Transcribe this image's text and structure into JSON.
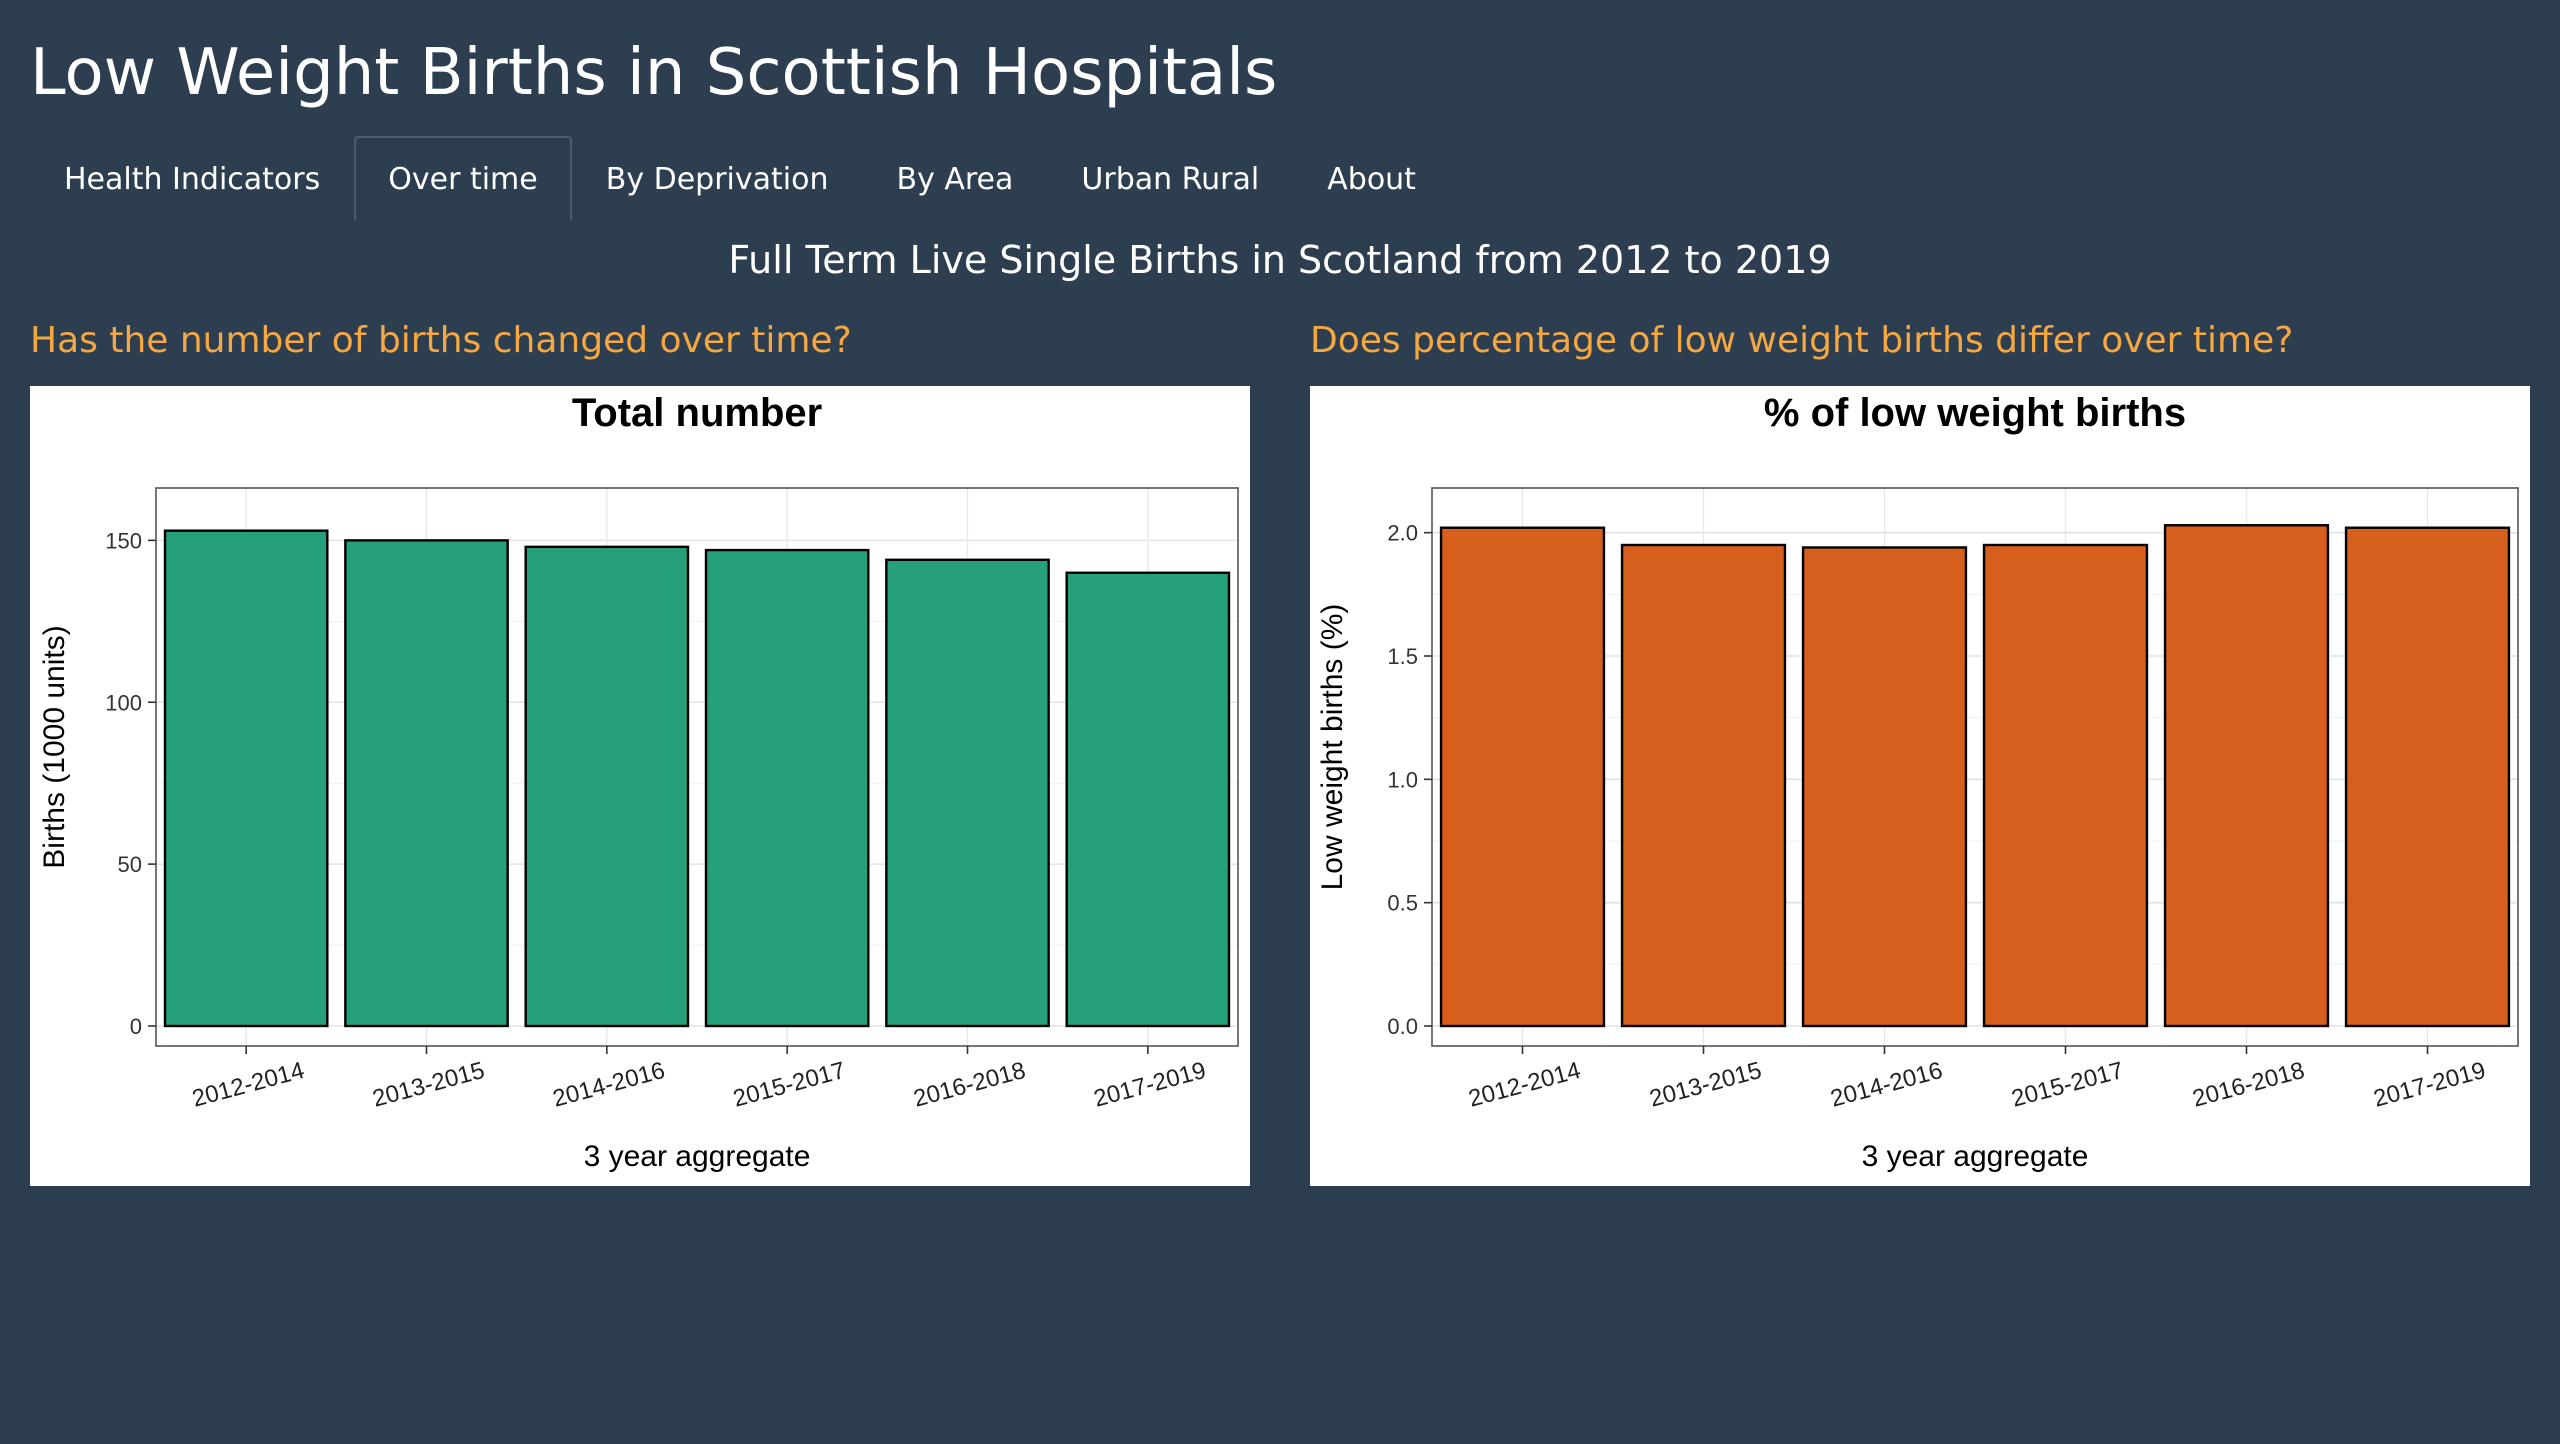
{
  "app": {
    "title": "Low Weight Births in Scottish Hospitals"
  },
  "tabs": [
    {
      "label": "Health Indicators",
      "active": false
    },
    {
      "label": "Over time",
      "active": true
    },
    {
      "label": "By Deprivation",
      "active": false
    },
    {
      "label": "By Area",
      "active": false
    },
    {
      "label": "Urban Rural",
      "active": false
    },
    {
      "label": "About",
      "active": false
    }
  ],
  "page": {
    "subtitle": "Full Term Live Single Births in Scotland from 2012 to 2019"
  },
  "sections": {
    "left_question": "Has the number of births changed over time?",
    "right_question": "Does percentage of low weight births differ over time?"
  },
  "colors": {
    "background": "#2c3e50",
    "accent": "#f5a742",
    "left_bar": "#26a07b",
    "right_bar": "#d65f1e"
  },
  "chart_data": [
    {
      "type": "bar",
      "title": "Total number",
      "xlabel": "3 year aggregate",
      "ylabel": "Births (1000 units)",
      "categories": [
        "2012-2014",
        "2013-2015",
        "2014-2016",
        "2015-2017",
        "2016-2018",
        "2017-2019"
      ],
      "values": [
        153,
        150,
        148,
        147,
        144,
        140
      ],
      "ylim": [
        0,
        160
      ],
      "yticks": [
        0,
        50,
        100,
        150
      ],
      "ytick_labels": [
        "0",
        "50",
        "100",
        "150"
      ],
      "grid": true,
      "color": "#26a07b"
    },
    {
      "type": "bar",
      "title": "% of low weight births",
      "xlabel": "3 year aggregate",
      "ylabel": "Low weight births (%)",
      "categories": [
        "2012-2014",
        "2013-2015",
        "2014-2016",
        "2015-2017",
        "2016-2018",
        "2017-2019"
      ],
      "values": [
        2.02,
        1.95,
        1.94,
        1.95,
        2.03,
        2.02
      ],
      "ylim": [
        0,
        2.1
      ],
      "yticks": [
        0,
        0.5,
        1.0,
        1.5,
        2.0
      ],
      "ytick_labels": [
        "0.0",
        "0.5",
        "1.0",
        "1.5",
        "2.0"
      ],
      "grid": true,
      "color": "#d65f1e"
    }
  ]
}
